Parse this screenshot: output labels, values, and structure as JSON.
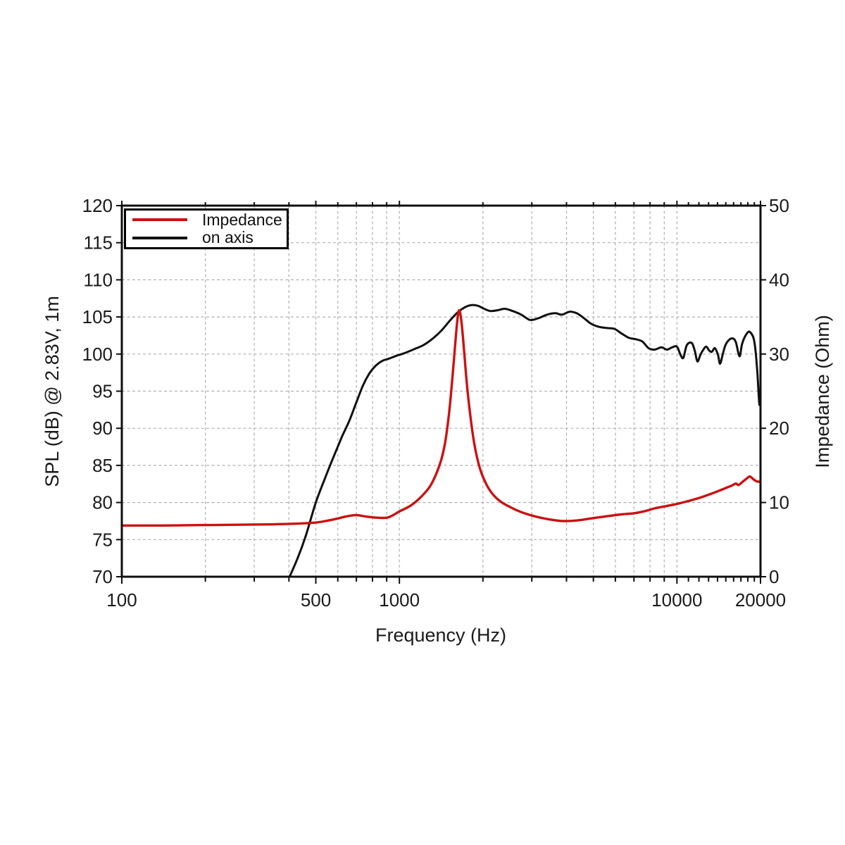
{
  "page": {
    "background": "#ffffff"
  },
  "colors": {
    "impedance_curve": "#cc1111",
    "on_axis_curve": "#111111",
    "grid": "#b0b0b0",
    "frame": "#0f0f0f",
    "text": "#1a1a1a"
  },
  "chart_data": {
    "type": "line",
    "title": "",
    "xlabel": "Frequency (Hz)",
    "ylabel_left": "SPL (dB) @ 2.83V, 1m",
    "ylabel_right": "Impedance (Ohm)",
    "x_scale": "log",
    "x_range": [
      100,
      20000
    ],
    "y_left_range": [
      70,
      120
    ],
    "y_right_range": [
      0,
      50
    ],
    "x_major_ticks": [
      100,
      500,
      1000,
      10000,
      20000
    ],
    "x_tick_labels": [
      "100",
      "500",
      "1000",
      "10000",
      "20000"
    ],
    "x_minor_ticks": [
      200,
      300,
      400,
      600,
      700,
      800,
      900,
      2000,
      3000,
      4000,
      5000,
      6000,
      7000,
      8000,
      9000,
      11000,
      12000,
      13000,
      14000,
      15000,
      16000,
      17000,
      18000,
      19000
    ],
    "y_left_ticks": [
      70,
      75,
      80,
      85,
      90,
      95,
      100,
      105,
      110,
      115,
      120
    ],
    "y_left_tick_labels": [
      "70",
      "75",
      "80",
      "85",
      "90",
      "95",
      "100",
      "105",
      "110",
      "115",
      "120"
    ],
    "y_right_ticks": [
      0,
      10,
      20,
      30,
      40,
      50
    ],
    "y_right_tick_labels": [
      "0",
      "10",
      "20",
      "30",
      "40",
      "50"
    ],
    "grid": {
      "on": true,
      "style": "dashed",
      "x_values": [
        200,
        300,
        400,
        500,
        600,
        700,
        800,
        900,
        1000,
        2000,
        3000,
        4000,
        5000,
        6000,
        7000,
        8000,
        9000,
        10000
      ],
      "y_left_values": [
        75,
        80,
        85,
        90,
        95,
        100,
        105,
        110,
        115
      ]
    },
    "legend": {
      "position": "top-left",
      "items": [
        {
          "label": "Impedance",
          "color": "#cc1111"
        },
        {
          "label": "on axis",
          "color": "#111111"
        }
      ]
    },
    "series": [
      {
        "name": "Impedance",
        "axis": "right",
        "unit": "Ohm",
        "color": "#cc1111",
        "points": [
          [
            100,
            6.9
          ],
          [
            140,
            6.9
          ],
          [
            190,
            6.95
          ],
          [
            260,
            7.0
          ],
          [
            340,
            7.05
          ],
          [
            430,
            7.15
          ],
          [
            500,
            7.3
          ],
          [
            550,
            7.55
          ],
          [
            600,
            7.85
          ],
          [
            650,
            8.15
          ],
          [
            700,
            8.3
          ],
          [
            760,
            8.1
          ],
          [
            830,
            7.95
          ],
          [
            900,
            7.95
          ],
          [
            950,
            8.3
          ],
          [
            1000,
            8.8
          ],
          [
            1100,
            9.6
          ],
          [
            1200,
            10.8
          ],
          [
            1300,
            12.4
          ],
          [
            1400,
            15.2
          ],
          [
            1460,
            18.0
          ],
          [
            1510,
            22.0
          ],
          [
            1550,
            26.5
          ],
          [
            1590,
            31.5
          ],
          [
            1620,
            34.8
          ],
          [
            1645,
            35.9
          ],
          [
            1675,
            34.2
          ],
          [
            1710,
            30.5
          ],
          [
            1750,
            26.0
          ],
          [
            1800,
            21.8
          ],
          [
            1860,
            18.0
          ],
          [
            1940,
            14.9
          ],
          [
            2030,
            12.9
          ],
          [
            2150,
            11.3
          ],
          [
            2300,
            10.2
          ],
          [
            2500,
            9.4
          ],
          [
            2750,
            8.7
          ],
          [
            3100,
            8.1
          ],
          [
            3500,
            7.7
          ],
          [
            3900,
            7.5
          ],
          [
            4400,
            7.6
          ],
          [
            5000,
            7.9
          ],
          [
            5600,
            8.15
          ],
          [
            6300,
            8.4
          ],
          [
            7000,
            8.55
          ],
          [
            7600,
            8.8
          ],
          [
            8300,
            9.2
          ],
          [
            9100,
            9.5
          ],
          [
            10000,
            9.8
          ],
          [
            11000,
            10.2
          ],
          [
            12000,
            10.6
          ],
          [
            13000,
            11.05
          ],
          [
            14000,
            11.5
          ],
          [
            15000,
            11.95
          ],
          [
            15800,
            12.3
          ],
          [
            16300,
            12.55
          ],
          [
            16650,
            12.35
          ],
          [
            17200,
            12.75
          ],
          [
            17800,
            13.2
          ],
          [
            18300,
            13.5
          ],
          [
            18900,
            13.1
          ],
          [
            19400,
            12.85
          ],
          [
            20000,
            12.8
          ]
        ]
      },
      {
        "name": "on axis",
        "axis": "left",
        "unit": "dB",
        "color": "#111111",
        "points": [
          [
            400,
            69.8
          ],
          [
            430,
            72.5
          ],
          [
            460,
            75.5
          ],
          [
            500,
            80.0
          ],
          [
            540,
            83.3
          ],
          [
            580,
            86.2
          ],
          [
            620,
            88.8
          ],
          [
            660,
            91.0
          ],
          [
            700,
            93.5
          ],
          [
            740,
            95.8
          ],
          [
            780,
            97.4
          ],
          [
            820,
            98.4
          ],
          [
            870,
            99.1
          ],
          [
            920,
            99.4
          ],
          [
            980,
            99.8
          ],
          [
            1040,
            100.1
          ],
          [
            1120,
            100.6
          ],
          [
            1220,
            101.2
          ],
          [
            1320,
            102.1
          ],
          [
            1420,
            103.2
          ],
          [
            1520,
            104.5
          ],
          [
            1620,
            105.6
          ],
          [
            1720,
            106.3
          ],
          [
            1820,
            106.6
          ],
          [
            1920,
            106.5
          ],
          [
            2020,
            106.1
          ],
          [
            2130,
            105.8
          ],
          [
            2260,
            105.9
          ],
          [
            2400,
            106.1
          ],
          [
            2560,
            105.8
          ],
          [
            2750,
            105.3
          ],
          [
            2950,
            104.6
          ],
          [
            3150,
            104.8
          ],
          [
            3400,
            105.3
          ],
          [
            3650,
            105.5
          ],
          [
            3850,
            105.3
          ],
          [
            4100,
            105.7
          ],
          [
            4350,
            105.5
          ],
          [
            4600,
            104.9
          ],
          [
            4900,
            104.1
          ],
          [
            5200,
            103.7
          ],
          [
            5600,
            103.5
          ],
          [
            5950,
            103.4
          ],
          [
            6300,
            102.8
          ],
          [
            6700,
            102.2
          ],
          [
            7100,
            102.0
          ],
          [
            7500,
            101.7
          ],
          [
            7900,
            100.8
          ],
          [
            8300,
            100.6
          ],
          [
            8800,
            100.9
          ],
          [
            9200,
            100.6
          ],
          [
            9600,
            100.9
          ],
          [
            10000,
            101.0
          ],
          [
            10300,
            99.9
          ],
          [
            10550,
            99.5
          ],
          [
            10850,
            101.2
          ],
          [
            11300,
            101.5
          ],
          [
            11600,
            100.4
          ],
          [
            11850,
            99.0
          ],
          [
            12150,
            99.9
          ],
          [
            12450,
            100.6
          ],
          [
            12750,
            101.0
          ],
          [
            13050,
            100.5
          ],
          [
            13350,
            100.3
          ],
          [
            13700,
            100.8
          ],
          [
            14050,
            99.9
          ],
          [
            14300,
            98.7
          ],
          [
            14650,
            100.1
          ],
          [
            14950,
            101.2
          ],
          [
            15400,
            101.9
          ],
          [
            15900,
            102.1
          ],
          [
            16300,
            101.6
          ],
          [
            16800,
            99.7
          ],
          [
            17150,
            101.3
          ],
          [
            17550,
            102.3
          ],
          [
            18100,
            103.0
          ],
          [
            18500,
            102.8
          ],
          [
            18900,
            102.1
          ],
          [
            19200,
            100.4
          ],
          [
            19500,
            97.3
          ],
          [
            19800,
            93.3
          ],
          [
            20000,
            93.8
          ]
        ]
      }
    ]
  }
}
